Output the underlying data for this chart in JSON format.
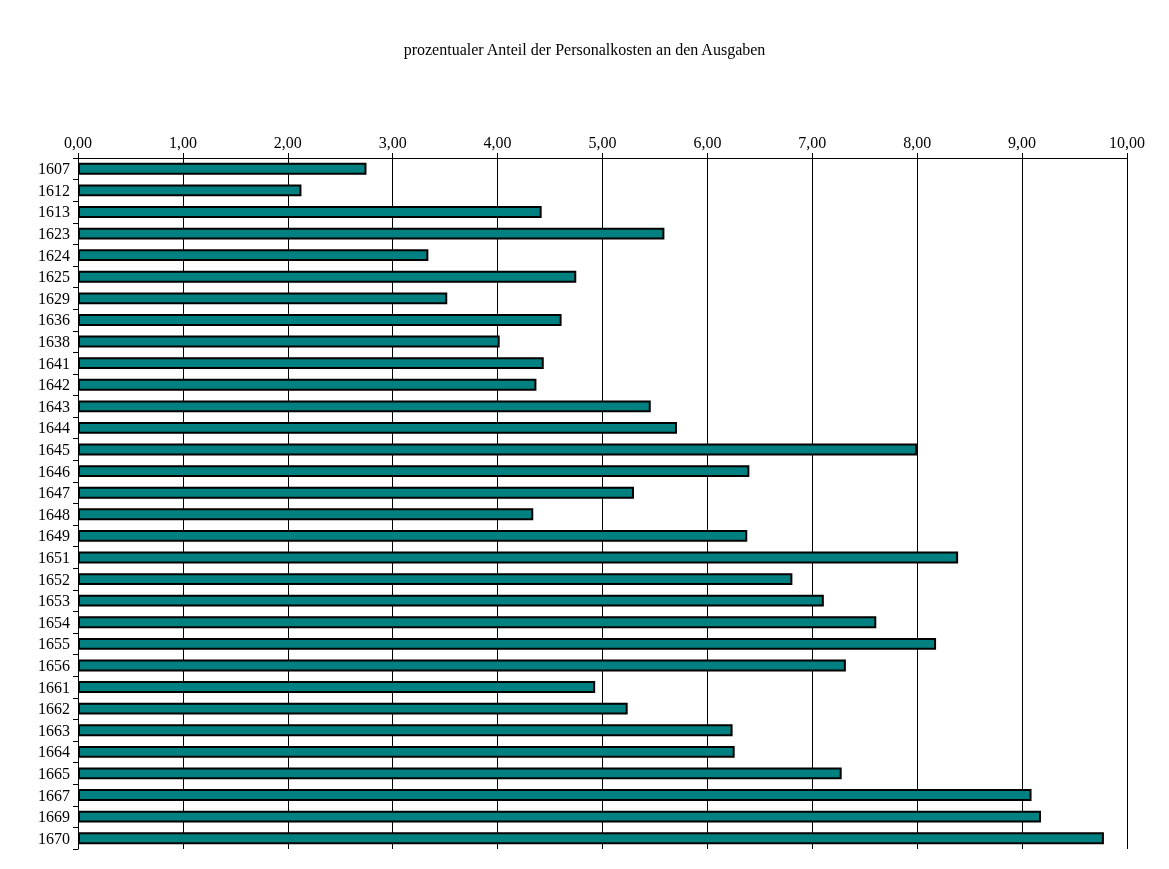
{
  "chart_data": {
    "type": "bar",
    "orientation": "horizontal",
    "title": "prozentualer Anteil der Personalkosten an den Ausgaben",
    "categories": [
      "1607",
      "1612",
      "1613",
      "1623",
      "1624",
      "1625",
      "1629",
      "1636",
      "1638",
      "1641",
      "1642",
      "1643",
      "1644",
      "1645",
      "1646",
      "1647",
      "1648",
      "1649",
      "1651",
      "1652",
      "1653",
      "1654",
      "1655",
      "1656",
      "1661",
      "1662",
      "1663",
      "1664",
      "1665",
      "1667",
      "1669",
      "1670"
    ],
    "values": [
      2.75,
      2.13,
      4.42,
      5.59,
      3.34,
      4.75,
      3.52,
      4.61,
      4.02,
      4.44,
      4.37,
      5.46,
      5.71,
      8.0,
      6.4,
      5.3,
      4.34,
      6.38,
      8.39,
      6.81,
      7.11,
      7.61,
      8.18,
      7.32,
      4.93,
      5.24,
      6.24,
      6.26,
      7.28,
      9.09,
      9.18,
      9.78
    ],
    "color": "#008080",
    "xlim": [
      0,
      10
    ],
    "xticks": [
      {
        "value": 0,
        "label": "0,00"
      },
      {
        "value": 1,
        "label": "1,00"
      },
      {
        "value": 2,
        "label": "2,00"
      },
      {
        "value": 3,
        "label": "3,00"
      },
      {
        "value": 4,
        "label": "4,00"
      },
      {
        "value": 5,
        "label": "5,00"
      },
      {
        "value": 6,
        "label": "6,00"
      },
      {
        "value": 7,
        "label": "7,00"
      },
      {
        "value": 8,
        "label": "8,00"
      },
      {
        "value": 9,
        "label": "9,00"
      },
      {
        "value": 10,
        "label": "10,00"
      }
    ],
    "grid": "x"
  }
}
